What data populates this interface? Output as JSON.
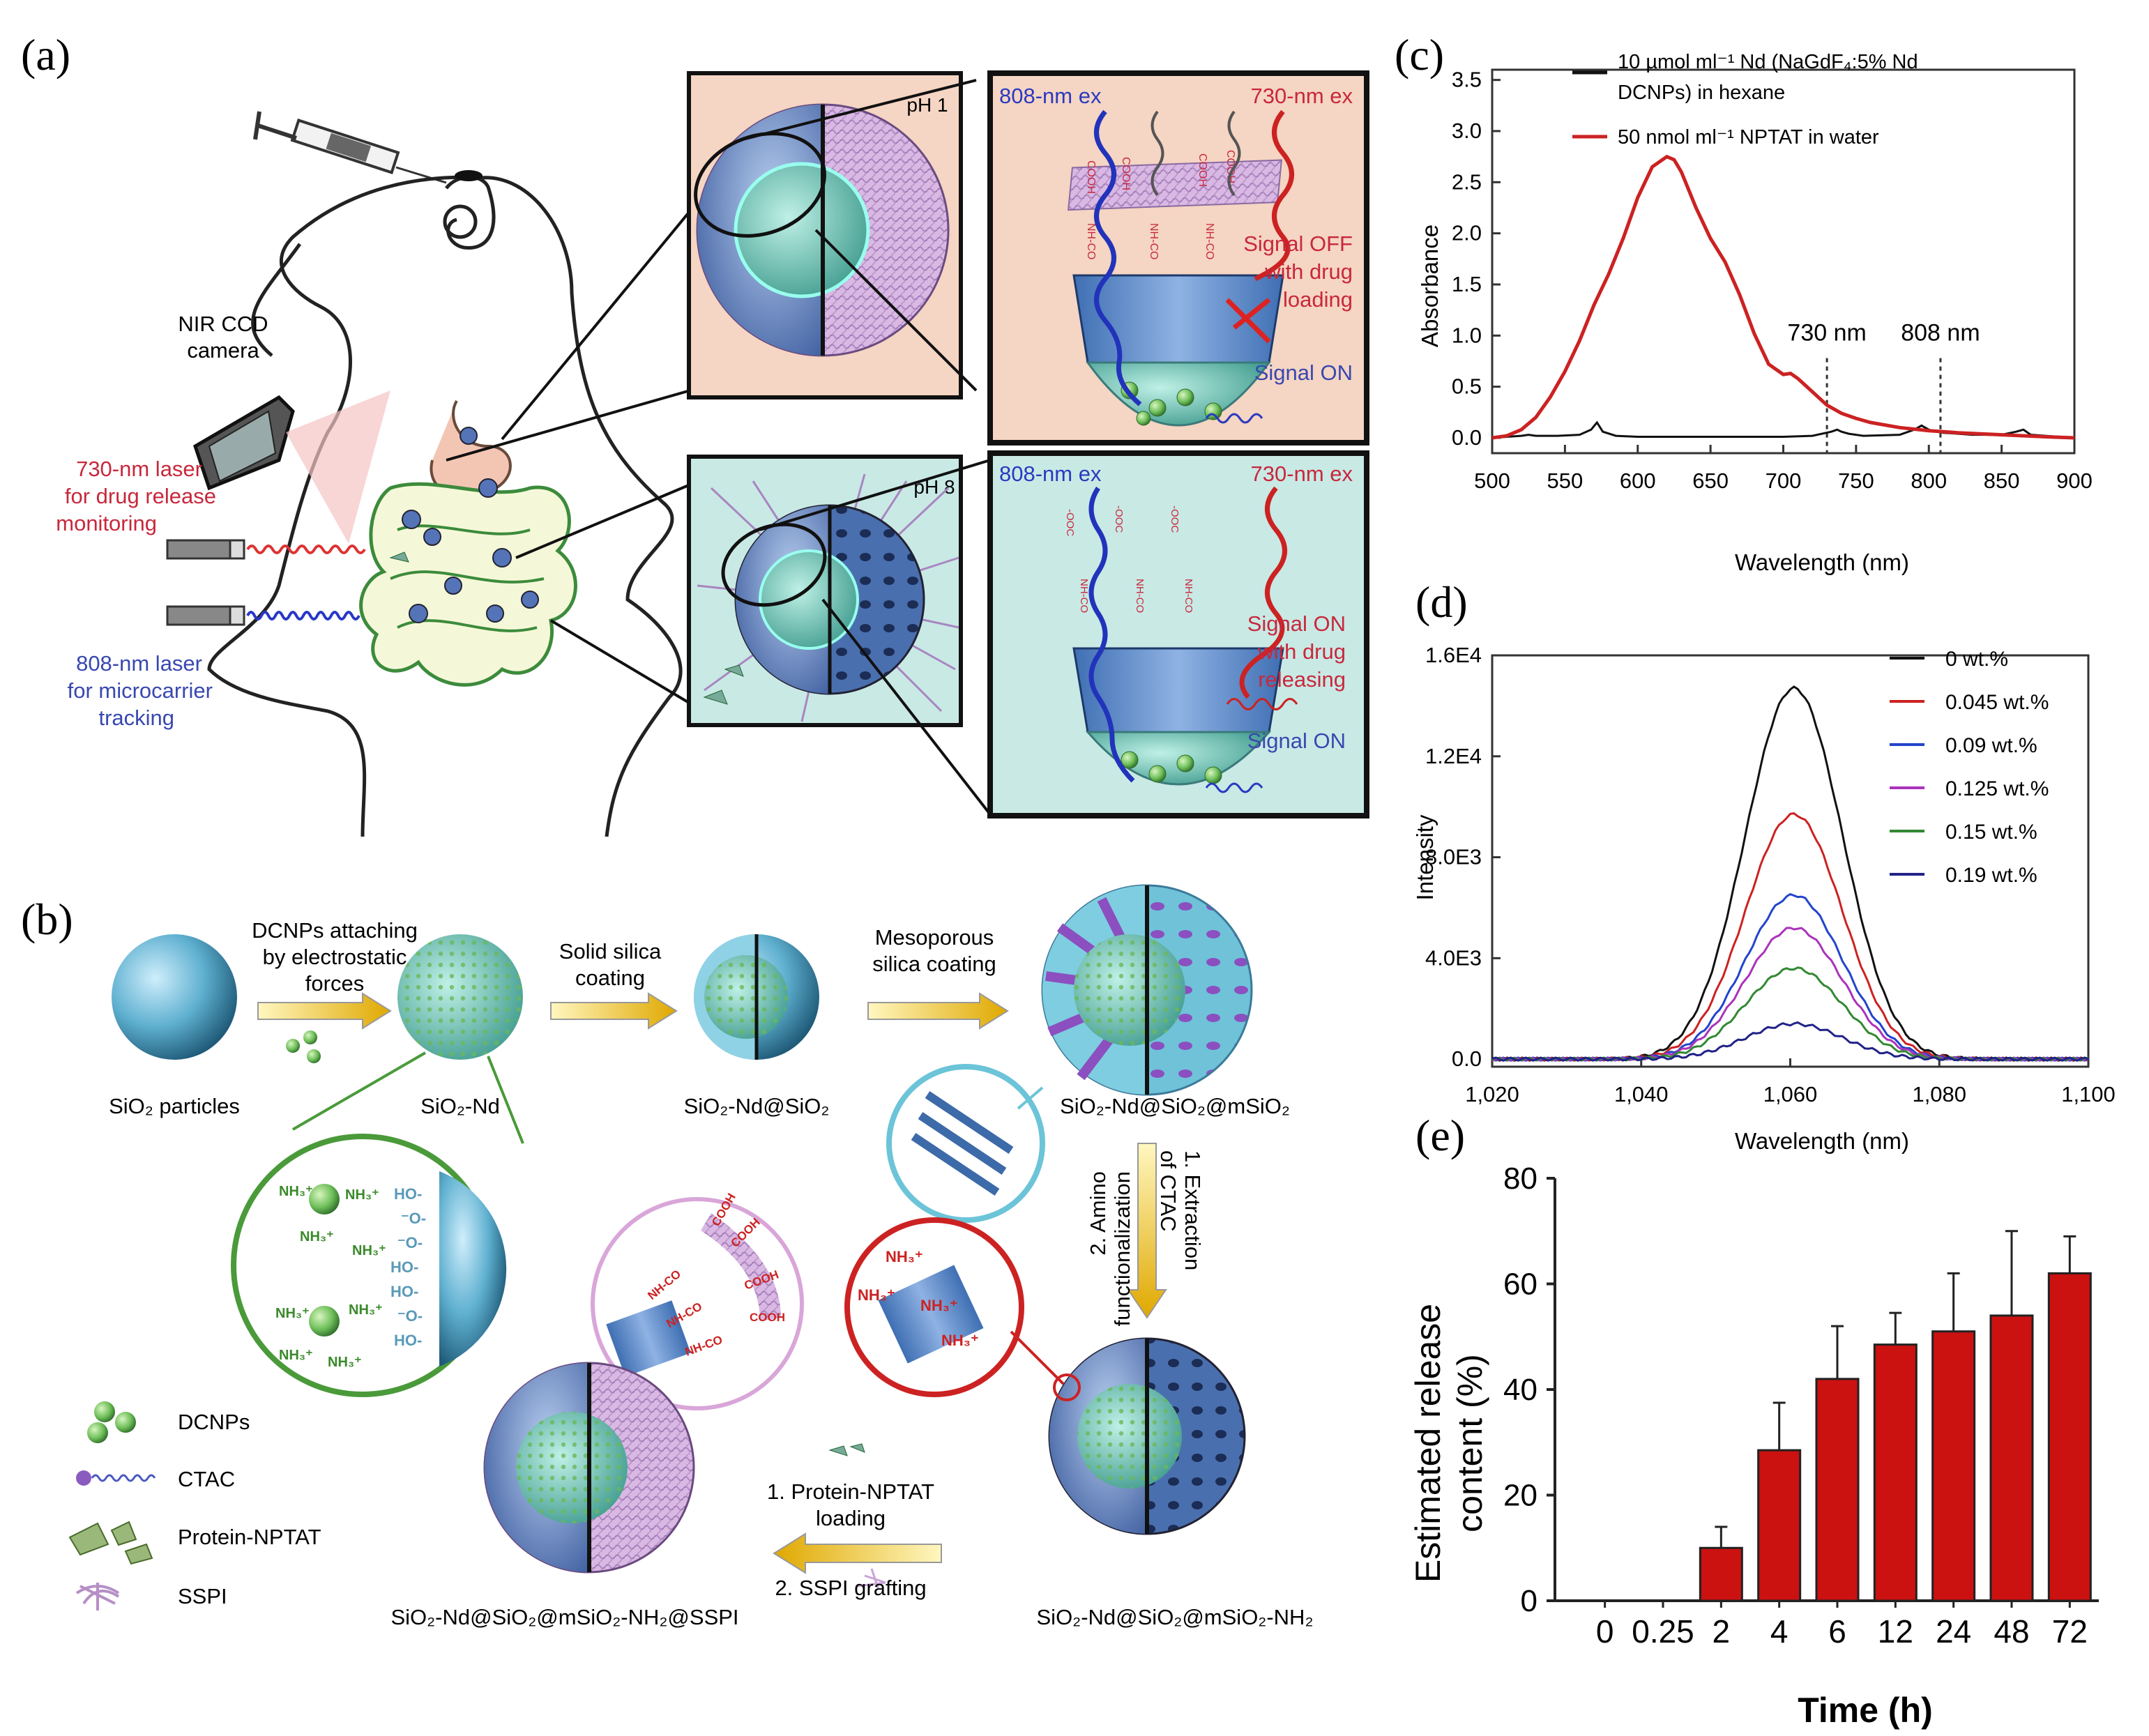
{
  "panel_labels": {
    "a": "(a)",
    "b": "(b)",
    "c": "(c)",
    "d": "(d)",
    "e": "(e)"
  },
  "panel_a": {
    "camera_label_1": "NIR CCD",
    "camera_label_2": "camera",
    "laser730_1": "730-nm laser",
    "laser730_2": "for drug release",
    "laser730_3": "monitoring",
    "laser808_1": "808-nm laser",
    "laser808_2": "for microcarrier",
    "laser808_3": "tracking",
    "ph1": "pH 1",
    "ph8": "pH 8",
    "top_ex808": "808-nm ex",
    "top_ex730": "730-nm ex",
    "top_off_1": "Signal OFF",
    "top_off_2": "with drug",
    "top_off_3": "loading",
    "top_on": "Signal ON",
    "bot_ex808": "808-nm ex",
    "bot_ex730": "730-nm ex",
    "bot_on_1": "Signal ON",
    "bot_on_2": "with drug",
    "bot_on_3": "releasing",
    "bot_on": "Signal ON",
    "chem_cooh": "COOH",
    "chem_nhco": "NH-CO",
    "chem_coo": "-OOC"
  },
  "panel_b": {
    "arrow1_1": "DCNPs attaching",
    "arrow1_2": "by electrostatic",
    "arrow1_3": "forces",
    "arrow2_1": "Solid silica",
    "arrow2_2": "coating",
    "arrow3_1": "Mesoporous",
    "arrow3_2": "silica coating",
    "p1": "SiO₂ particles",
    "p2": "SiO₂-Nd",
    "p3": "SiO₂-Nd@SiO₂",
    "p4": "SiO₂-Nd@SiO₂@mSiO₂",
    "p5": "SiO₂-Nd@SiO₂@mSiO₂-NH₂",
    "p6": "SiO₂-Nd@SiO₂@mSiO₂-NH₂@SSPI",
    "vstep_1": "1. Extraction",
    "vstep_1b": "of CTAC",
    "vstep_2": "2. Amino",
    "vstep_2b": "functionalization",
    "hstep_1": "1. Protein-NPTAT",
    "hstep_1b": "loading",
    "hstep_2": "2. SSPI grafting",
    "legend": [
      "DCNPs",
      "CTAC",
      "Protein-NPTAT",
      "SSPI"
    ],
    "chem_nh3": "NH₃⁺",
    "chem_ho": "HO-",
    "chem_o": "⁻O-"
  },
  "chart_data": [
    {
      "id": "c",
      "type": "line",
      "title": "",
      "xlabel": "Wavelength (nm)",
      "ylabel": "Absorbance",
      "xlim": [
        500,
        900
      ],
      "ylim": [
        -0.15,
        3.6
      ],
      "xticks": [
        500,
        550,
        600,
        650,
        700,
        750,
        800,
        850,
        900
      ],
      "yticks": [
        0.0,
        0.5,
        1.0,
        1.5,
        2.0,
        2.5,
        3.0,
        3.5
      ],
      "ytick_labels": [
        "0.0",
        "0.5",
        "1.0",
        "1.5",
        "2.0",
        "2.5",
        "3.0",
        "3.5"
      ],
      "annotations": [
        {
          "text": "730 nm",
          "x": 730,
          "y": 0.95
        },
        {
          "text": "808 nm",
          "x": 808,
          "y": 0.95
        }
      ],
      "vlines": [
        730,
        808
      ],
      "series": [
        {
          "name": "10 µmol ml⁻¹ Nd (NaGdF₄:5% Nd DCNPs) in hexane",
          "name_line1": "10 µmol ml⁻¹ Nd (NaGdF₄:5% Nd",
          "name_line2": "DCNPs) in hexane",
          "color": "#111111",
          "x": [
            500,
            510,
            520,
            525,
            530,
            545,
            560,
            568,
            572,
            576,
            585,
            600,
            650,
            700,
            720,
            733,
            737,
            740,
            745,
            755,
            780,
            790,
            795,
            800,
            805,
            810,
            830,
            850,
            860,
            865,
            870,
            900
          ],
          "y": [
            0.0,
            0.01,
            0.02,
            0.03,
            0.02,
            0.02,
            0.03,
            0.08,
            0.15,
            0.06,
            0.02,
            0.01,
            0.01,
            0.01,
            0.02,
            0.06,
            0.08,
            0.06,
            0.04,
            0.02,
            0.03,
            0.08,
            0.12,
            0.08,
            0.06,
            0.05,
            0.03,
            0.03,
            0.06,
            0.08,
            0.03,
            0.0
          ]
        },
        {
          "name": "50 nmol ml⁻¹ NPTAT in water",
          "color": "#cc2222",
          "x": [
            500,
            510,
            520,
            530,
            540,
            550,
            560,
            570,
            580,
            590,
            600,
            610,
            620,
            625,
            630,
            640,
            650,
            660,
            670,
            680,
            690,
            700,
            705,
            710,
            720,
            730,
            740,
            750,
            760,
            780,
            800,
            820,
            850,
            880,
            900
          ],
          "y": [
            0.0,
            0.02,
            0.08,
            0.2,
            0.4,
            0.65,
            0.95,
            1.3,
            1.6,
            1.95,
            2.35,
            2.65,
            2.75,
            2.72,
            2.6,
            2.25,
            1.95,
            1.72,
            1.4,
            1.02,
            0.72,
            0.62,
            0.63,
            0.58,
            0.45,
            0.32,
            0.24,
            0.19,
            0.15,
            0.1,
            0.07,
            0.05,
            0.03,
            0.01,
            0.0
          ]
        }
      ]
    },
    {
      "id": "d",
      "type": "line",
      "title": "",
      "xlabel": "Wavelength (nm)",
      "ylabel": "Intensity",
      "xlim": [
        1020,
        1100
      ],
      "ylim": [
        -300,
        16000
      ],
      "xticks": [
        1020,
        1040,
        1060,
        1080,
        1100
      ],
      "xtick_labels": [
        "1,020",
        "1,040",
        "1,060",
        "1,080",
        "1,100"
      ],
      "yticks": [
        0,
        4000,
        8000,
        12000,
        16000
      ],
      "ytick_labels": [
        "0.0",
        "4.0E3",
        "8.0E3",
        "1.2E4",
        "1.6E4"
      ],
      "series": [
        {
          "name": "0 wt.%",
          "color": "#111111",
          "peak": 14700
        },
        {
          "name": "0.045 wt.%",
          "color": "#cc2222",
          "peak": 9700
        },
        {
          "name": "0.09 wt.%",
          "color": "#2244cc",
          "peak": 6500
        },
        {
          "name": "0.125 wt.%",
          "color": "#aa33bb",
          "peak": 5200
        },
        {
          "name": "0.15 wt.%",
          "color": "#338833",
          "peak": 3600
        },
        {
          "name": "0.19 wt.%",
          "color": "#222288",
          "peak": 1400
        }
      ]
    },
    {
      "id": "e",
      "type": "bar",
      "title": "",
      "xlabel": "Time (h)",
      "ylabel_1": "Estimated release",
      "ylabel_2": "content (%)",
      "ylim": [
        0,
        80
      ],
      "yticks": [
        0,
        20,
        40,
        60,
        80
      ],
      "categories": [
        "0",
        "0.25",
        "2",
        "4",
        "6",
        "12",
        "24",
        "48",
        "72"
      ],
      "values": [
        0,
        0,
        10,
        28.5,
        42,
        48.5,
        51,
        54,
        62
      ],
      "errors": [
        0,
        0,
        4,
        9,
        10,
        6,
        11,
        16,
        7
      ],
      "color": "#cc1111"
    }
  ]
}
